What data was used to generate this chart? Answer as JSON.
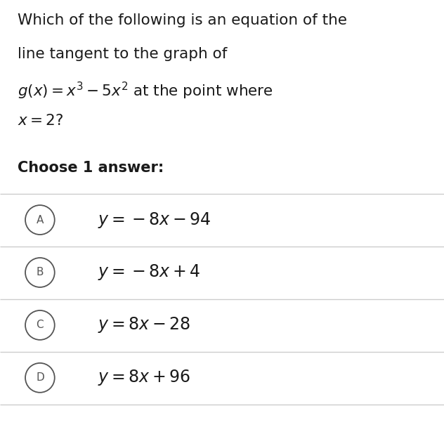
{
  "background_color": "#ffffff",
  "title_lines": [
    "Which of the following is an equation of the",
    "line tangent to the graph of",
    "$g(x) = x^3 - 5x^2$ at the point where",
    "$x = 2?$"
  ],
  "subtitle": "Choose 1 answer:",
  "choices": [
    {
      "label": "A",
      "text": "$y = -8x - 94$"
    },
    {
      "label": "B",
      "text": "$y = -8x + 4$"
    },
    {
      "label": "C",
      "text": "$y = 8x - 28$"
    },
    {
      "label": "D",
      "text": "$y = 8x + 96$"
    }
  ],
  "text_color": "#1a1a1a",
  "line_color": "#cccccc",
  "circle_color": "#555555",
  "figsize": [
    6.32,
    6.35
  ],
  "dpi": 100
}
